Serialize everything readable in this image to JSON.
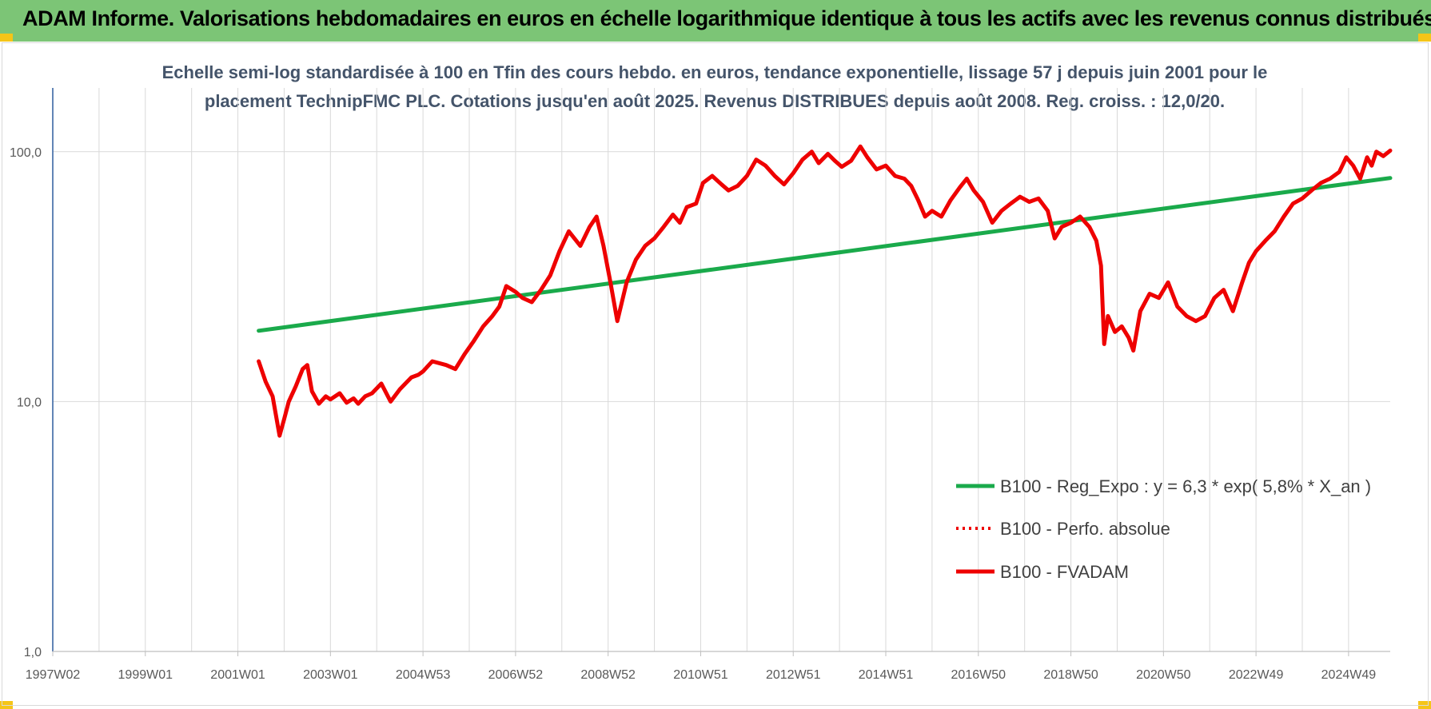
{
  "header": {
    "title": "ADAM Informe. Valorisations hebdomadaires en euros en échelle logarithmique identique à tous les actifs avec les revenus connus distribués"
  },
  "colors": {
    "header_band": "#7cc576",
    "regression": "#1aaa4b",
    "fvadam": "#ee0000",
    "perfo": "#ee0000",
    "grid": "#d9d9d9",
    "axis": "#2e5d9e",
    "subtitle": "#44546a"
  },
  "chart_data": {
    "type": "line",
    "title_lines": [
      "Echelle semi-log standardisée à 100 en Tfin des cours hebdo. en euros, tendance exponentielle, lissage 57 j depuis juin 2001 pour le",
      "placement TechnipFMC PLC. Cotations jusqu'en août 2025. Revenus DISTRIBUES depuis août 2008. Reg. croiss. : 12,0/20."
    ],
    "y_scale": "log",
    "ylim": [
      1,
      180
    ],
    "y_ticks": [
      {
        "value": 1,
        "label": "1,0"
      },
      {
        "value": 10,
        "label": "10,0"
      },
      {
        "value": 100,
        "label": "100,0"
      }
    ],
    "x_unit": "year",
    "xlim": [
      1997.0,
      2025.9
    ],
    "x_ticks": [
      {
        "value": 1997.0,
        "label": "1997W02"
      },
      {
        "value": 1999.0,
        "label": "1999W01"
      },
      {
        "value": 2001.0,
        "label": "2001W01"
      },
      {
        "value": 2003.0,
        "label": "2003W01"
      },
      {
        "value": 2005.0,
        "label": "2004W53"
      },
      {
        "value": 2007.0,
        "label": "2006W52"
      },
      {
        "value": 2009.0,
        "label": "2008W52"
      },
      {
        "value": 2011.0,
        "label": "2010W51"
      },
      {
        "value": 2013.0,
        "label": "2012W51"
      },
      {
        "value": 2015.0,
        "label": "2014W51"
      },
      {
        "value": 2017.0,
        "label": "2016W50"
      },
      {
        "value": 2019.0,
        "label": "2018W50"
      },
      {
        "value": 2021.0,
        "label": "2020W50"
      },
      {
        "value": 2023.0,
        "label": "2022W49"
      },
      {
        "value": 2025.0,
        "label": "2024W49"
      }
    ],
    "grid": true,
    "legend_position": "right",
    "series": [
      {
        "name": "B100 - Reg_Expo : y = 6,3 * exp( 5,8% *  X_an )",
        "color": "#1aaa4b",
        "style": "solid",
        "x": [
          2001.45,
          2025.9
        ],
        "y": [
          19.2,
          78.5
        ]
      },
      {
        "name": "B100 - Perfo. absolue",
        "color": "#ee0000",
        "style": "dotted",
        "x": [],
        "y": []
      },
      {
        "name": "B100 - FVADAM",
        "color": "#ee0000",
        "style": "solid",
        "x": [
          2001.45,
          2001.6,
          2001.75,
          2001.9,
          2002.0,
          2002.1,
          2002.25,
          2002.4,
          2002.5,
          2002.6,
          2002.75,
          2002.9,
          2003.0,
          2003.2,
          2003.35,
          2003.5,
          2003.6,
          2003.75,
          2003.9,
          2004.1,
          2004.3,
          2004.5,
          2004.75,
          2004.9,
          2005.0,
          2005.2,
          2005.5,
          2005.7,
          2005.9,
          2006.1,
          2006.3,
          2006.5,
          2006.65,
          2006.8,
          2007.0,
          2007.15,
          2007.35,
          2007.55,
          2007.75,
          2007.95,
          2008.15,
          2008.4,
          2008.6,
          2008.75,
          2008.9,
          2009.05,
          2009.2,
          2009.4,
          2009.6,
          2009.8,
          2010.0,
          2010.2,
          2010.4,
          2010.55,
          2010.7,
          2010.9,
          2011.05,
          2011.25,
          2011.45,
          2011.6,
          2011.8,
          2012.0,
          2012.2,
          2012.4,
          2012.6,
          2012.8,
          2013.0,
          2013.2,
          2013.4,
          2013.55,
          2013.75,
          2013.9,
          2014.05,
          2014.25,
          2014.45,
          2014.6,
          2014.8,
          2015.0,
          2015.2,
          2015.4,
          2015.55,
          2015.7,
          2015.85,
          2016.0,
          2016.2,
          2016.4,
          2016.6,
          2016.75,
          2016.9,
          2017.1,
          2017.3,
          2017.5,
          2017.7,
          2017.9,
          2018.1,
          2018.3,
          2018.5,
          2018.65,
          2018.8,
          2019.0,
          2019.2,
          2019.4,
          2019.55,
          2019.65,
          2019.72,
          2019.8,
          2019.95,
          2020.1,
          2020.25,
          2020.35,
          2020.5,
          2020.7,
          2020.9,
          2021.1,
          2021.3,
          2021.5,
          2021.7,
          2021.9,
          2022.1,
          2022.3,
          2022.5,
          2022.7,
          2022.85,
          2023.0,
          2023.2,
          2023.4,
          2023.6,
          2023.8,
          2024.0,
          2024.2,
          2024.4,
          2024.6,
          2024.8,
          2024.95,
          2025.1,
          2025.25,
          2025.4,
          2025.5,
          2025.6,
          2025.75,
          2025.9
        ],
        "y": [
          14.5,
          12.0,
          10.5,
          7.3,
          8.5,
          10.0,
          11.5,
          13.5,
          14.0,
          11.0,
          9.8,
          10.5,
          10.2,
          10.8,
          9.9,
          10.3,
          9.8,
          10.5,
          10.8,
          11.8,
          10.0,
          11.2,
          12.5,
          12.8,
          13.2,
          14.5,
          14.0,
          13.5,
          15.5,
          17.5,
          20.0,
          22.0,
          24.0,
          29.0,
          27.5,
          26.0,
          25.0,
          28.0,
          32.0,
          40.0,
          48.0,
          42.0,
          50.0,
          55.0,
          42.0,
          30.0,
          21.0,
          30.0,
          37.0,
          42.0,
          45.0,
          50.0,
          56.0,
          52.0,
          60.0,
          62.0,
          75.0,
          80.0,
          74.0,
          70.0,
          73.0,
          80.0,
          93.0,
          88.0,
          80.0,
          74.0,
          82.0,
          93.0,
          100.0,
          90.0,
          98.0,
          92.0,
          87.0,
          92.0,
          105.0,
          95.0,
          85.0,
          88.0,
          80.0,
          78.0,
          73.0,
          64.0,
          55.0,
          58.0,
          55.0,
          64.0,
          72.0,
          78.0,
          70.0,
          63.0,
          52.0,
          58.0,
          62.0,
          66.0,
          63.0,
          65.0,
          58.0,
          45.0,
          50.0,
          52.0,
          55.0,
          50.0,
          44.0,
          35.0,
          17.0,
          22.0,
          19.0,
          20.0,
          18.0,
          16.0,
          23.0,
          27.0,
          26.0,
          30.0,
          24.0,
          22.0,
          21.0,
          22.0,
          26.0,
          28.0,
          23.0,
          30.0,
          36.0,
          40.0,
          44.0,
          48.0,
          55.0,
          62.0,
          65.0,
          70.0,
          75.0,
          78.0,
          83.0,
          95.0,
          88.0,
          78.0,
          95.0,
          88.0,
          100.0,
          96.0,
          101.0
        ]
      }
    ]
  }
}
